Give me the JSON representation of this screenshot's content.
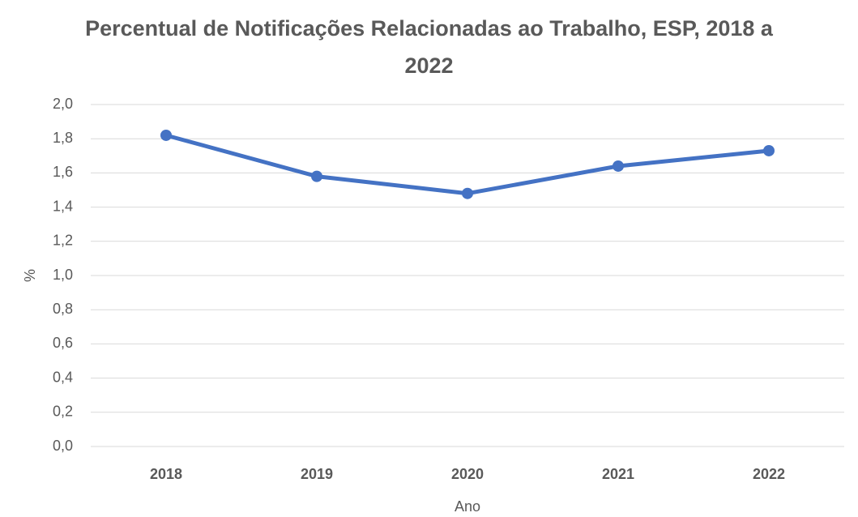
{
  "chart_data": {
    "type": "line",
    "title": "Percentual de Notificações Relacionadas ao Trabalho, ESP, 2018 a 2022",
    "xlabel": "Ano",
    "ylabel": "%",
    "categories": [
      "2018",
      "2019",
      "2020",
      "2021",
      "2022"
    ],
    "series": [
      {
        "name": "%",
        "color": "#4472c4",
        "values": [
          1.82,
          1.58,
          1.48,
          1.64,
          1.73
        ]
      }
    ],
    "ylim": [
      0,
      2
    ],
    "yticks": [
      {
        "value": 0,
        "label": "0,0"
      },
      {
        "value": 0.2,
        "label": "0,2"
      },
      {
        "value": 0.4,
        "label": "0,4"
      },
      {
        "value": 0.6,
        "label": "0,6"
      },
      {
        "value": 0.8,
        "label": "0,8"
      },
      {
        "value": 1,
        "label": "1,0"
      },
      {
        "value": 1.2,
        "label": "1,2"
      },
      {
        "value": 1.4,
        "label": "1,4"
      },
      {
        "value": 1.6,
        "label": "1,6"
      },
      {
        "value": 1.8,
        "label": "1,8"
      },
      {
        "value": 2,
        "label": "2,0"
      }
    ],
    "grid": true
  }
}
